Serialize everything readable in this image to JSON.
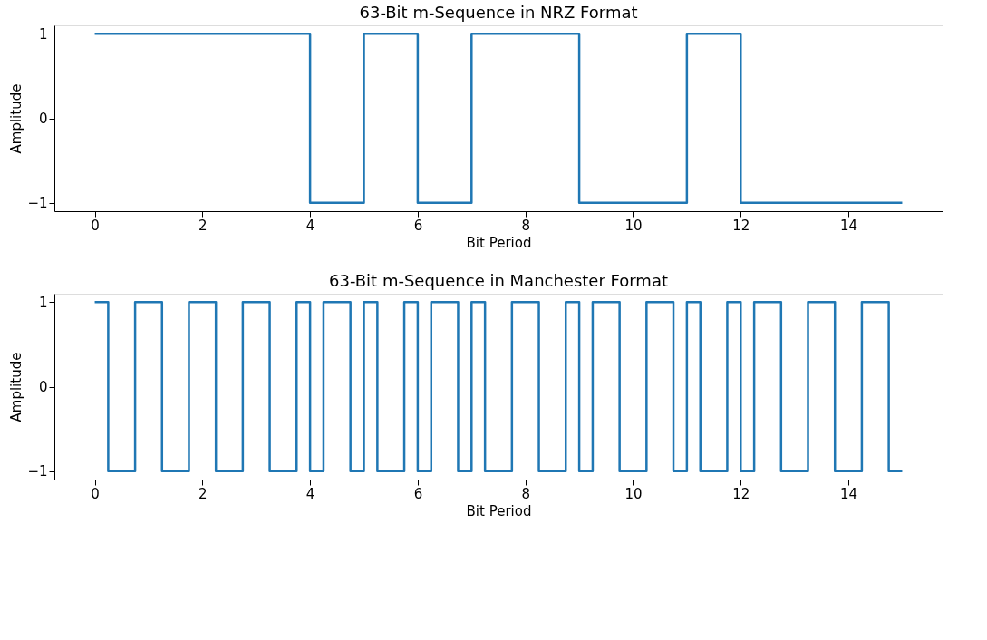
{
  "chart_data": [
    {
      "type": "step",
      "title": "63-Bit m-Sequence in NRZ Format",
      "xlabel": "Bit Period",
      "ylabel": "Amplitude",
      "series": [
        {
          "color": "#1f77b4",
          "x": [
            0,
            1,
            2,
            3,
            4,
            5,
            6,
            7,
            8,
            9,
            10,
            11,
            12,
            13,
            14,
            15
          ],
          "values": [
            1,
            1,
            1,
            1,
            -1,
            1,
            -1,
            1,
            1,
            -1,
            -1,
            1,
            -1,
            -1,
            -1,
            -1
          ]
        }
      ],
      "xlim": [
        -0.75,
        15.75
      ],
      "ylim": [
        -1.1,
        1.1
      ],
      "xticks": [
        0,
        2,
        4,
        6,
        8,
        10,
        12,
        14
      ],
      "yticks": [
        {
          "value": -1,
          "label": "−1"
        },
        0,
        1
      ]
    },
    {
      "type": "step",
      "title": "63-Bit m-Sequence in Manchester Format",
      "xlabel": "Bit Period",
      "ylabel": "Amplitude",
      "series": [
        {
          "color": "#1f77b4",
          "x": [
            0,
            0.25,
            0.75,
            1.25,
            1.75,
            2.25,
            2.75,
            3.25,
            3.75,
            4.0,
            4.25,
            4.75,
            5.0,
            5.25,
            5.75,
            6.0,
            6.25,
            6.75,
            7.0,
            7.25,
            7.75,
            8.25,
            8.75,
            9.0,
            9.25,
            9.75,
            10.25,
            10.75,
            11.0,
            11.25,
            11.75,
            12.0,
            12.25,
            12.75,
            13.25,
            13.75,
            14.25,
            14.75,
            15
          ],
          "values": [
            1,
            -1,
            1,
            -1,
            1,
            -1,
            1,
            -1,
            1,
            -1,
            1,
            -1,
            1,
            -1,
            1,
            -1,
            1,
            -1,
            1,
            -1,
            1,
            -1,
            1,
            -1,
            1,
            -1,
            1,
            -1,
            1,
            -1,
            1,
            -1,
            1,
            -1,
            1,
            -1,
            1,
            -1,
            -1
          ]
        }
      ],
      "xlim": [
        -0.75,
        15.75
      ],
      "ylim": [
        -1.1,
        1.1
      ],
      "xticks": [
        0,
        2,
        4,
        6,
        8,
        10,
        12,
        14
      ],
      "yticks": [
        {
          "value": -1,
          "label": "−1"
        },
        0,
        1
      ]
    }
  ]
}
